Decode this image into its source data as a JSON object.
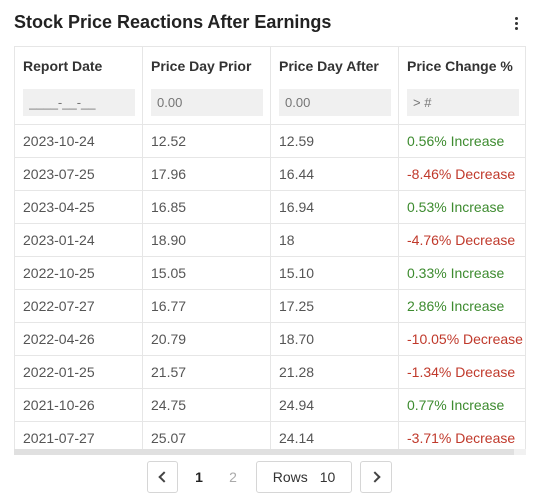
{
  "title": "Stock Price Reactions After Earnings",
  "menu_icon": "kebab-menu-icon",
  "columns": [
    "Report Date",
    "Price Day Prior",
    "Price Day After",
    "Price Change %"
  ],
  "filters": [
    {
      "placeholder": "____-__-__"
    },
    {
      "placeholder": "0.00"
    },
    {
      "placeholder": "0.00"
    },
    {
      "placeholder": "> #"
    }
  ],
  "rows": [
    {
      "date": "2023-10-24",
      "prior": "12.52",
      "after": "12.59",
      "change": "0.56% Increase",
      "dir": "up"
    },
    {
      "date": "2023-07-25",
      "prior": "17.96",
      "after": "16.44",
      "change": "-8.46% Decrease",
      "dir": "down"
    },
    {
      "date": "2023-04-25",
      "prior": "16.85",
      "after": "16.94",
      "change": "0.53% Increase",
      "dir": "up"
    },
    {
      "date": "2023-01-24",
      "prior": "18.90",
      "after": "18",
      "change": "-4.76% Decrease",
      "dir": "down"
    },
    {
      "date": "2022-10-25",
      "prior": "15.05",
      "after": "15.10",
      "change": "0.33% Increase",
      "dir": "up"
    },
    {
      "date": "2022-07-27",
      "prior": "16.77",
      "after": "17.25",
      "change": "2.86% Increase",
      "dir": "up"
    },
    {
      "date": "2022-04-26",
      "prior": "20.79",
      "after": "18.70",
      "change": "-10.05% Decrease",
      "dir": "down"
    },
    {
      "date": "2022-01-25",
      "prior": "21.57",
      "after": "21.28",
      "change": "-1.34% Decrease",
      "dir": "down"
    },
    {
      "date": "2021-10-26",
      "prior": "24.75",
      "after": "24.94",
      "change": "0.77% Increase",
      "dir": "up"
    },
    {
      "date": "2021-07-27",
      "prior": "25.07",
      "after": "24.14",
      "change": "-3.71% Decrease",
      "dir": "down"
    }
  ],
  "colors": {
    "increase": "#3d8b2f",
    "decrease": "#c0392b"
  },
  "pagination": {
    "prev_icon": "chevron-left-icon",
    "next_icon": "chevron-right-icon",
    "pages": [
      "1",
      "2"
    ],
    "current_page": "1",
    "rows_label": "Rows",
    "rows_value": "10"
  }
}
